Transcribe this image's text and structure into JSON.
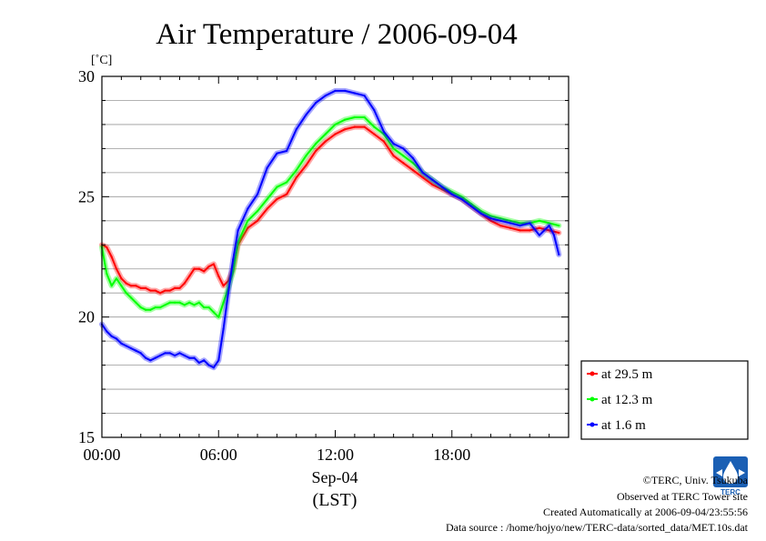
{
  "chart_data": {
    "type": "line",
    "title": "Air Temperature / 2006-09-04",
    "yunit": "[˚C]",
    "ylim": [
      15,
      30
    ],
    "yticks": [
      15,
      20,
      25,
      30
    ],
    "xlim": [
      0,
      24
    ],
    "xticks": [
      {
        "value": 0,
        "label": "00:00"
      },
      {
        "value": 6,
        "label": "06:00"
      },
      {
        "value": 12,
        "label": "12:00"
      },
      {
        "value": 18,
        "label": "18:00"
      }
    ],
    "xlabel_date": "Sep-04",
    "xlabel_unit": "(LST)",
    "grid": true,
    "legend_position": "right",
    "series": [
      {
        "name": "at 29.5 m",
        "color": "#ff0000",
        "x": [
          0,
          0.25,
          0.5,
          0.75,
          1,
          1.25,
          1.5,
          1.75,
          2,
          2.25,
          2.5,
          2.75,
          3,
          3.25,
          3.5,
          3.75,
          4,
          4.25,
          4.5,
          4.75,
          5,
          5.25,
          5.5,
          5.75,
          6,
          6.25,
          6.5,
          6.75,
          7,
          7.5,
          8,
          8.5,
          9,
          9.5,
          10,
          10.5,
          11,
          11.5,
          12,
          12.5,
          13,
          13.5,
          14,
          14.5,
          15,
          15.5,
          16,
          16.5,
          17,
          17.5,
          18,
          18.5,
          19,
          19.5,
          20,
          20.5,
          21,
          21.5,
          22,
          22.5,
          23,
          23.5
        ],
        "y": [
          23.0,
          22.9,
          22.5,
          22.0,
          21.6,
          21.4,
          21.3,
          21.3,
          21.2,
          21.2,
          21.1,
          21.1,
          21.0,
          21.1,
          21.1,
          21.2,
          21.2,
          21.4,
          21.7,
          22.0,
          22.0,
          21.9,
          22.1,
          22.2,
          21.7,
          21.3,
          21.5,
          22.0,
          23.0,
          23.7,
          24.0,
          24.5,
          24.9,
          25.1,
          25.8,
          26.3,
          26.9,
          27.3,
          27.6,
          27.8,
          27.9,
          27.9,
          27.6,
          27.3,
          26.7,
          26.4,
          26.1,
          25.8,
          25.5,
          25.3,
          25.1,
          24.9,
          24.6,
          24.3,
          24.0,
          23.8,
          23.7,
          23.6,
          23.6,
          23.7,
          23.6,
          23.5
        ]
      },
      {
        "name": "at 12.3 m",
        "color": "#00ff00",
        "x": [
          0,
          0.25,
          0.5,
          0.75,
          1,
          1.25,
          1.5,
          1.75,
          2,
          2.25,
          2.5,
          2.75,
          3,
          3.25,
          3.5,
          3.75,
          4,
          4.25,
          4.5,
          4.75,
          5,
          5.25,
          5.5,
          5.75,
          6,
          6.25,
          6.5,
          6.75,
          7,
          7.5,
          8,
          8.5,
          9,
          9.5,
          10,
          10.5,
          11,
          11.5,
          12,
          12.5,
          13,
          13.5,
          14,
          14.5,
          15,
          15.5,
          16,
          16.5,
          17,
          17.5,
          18,
          18.5,
          19,
          19.5,
          20,
          20.5,
          21,
          21.5,
          22,
          22.5,
          23,
          23.5
        ],
        "y": [
          22.9,
          21.8,
          21.3,
          21.6,
          21.3,
          21.0,
          20.8,
          20.6,
          20.4,
          20.3,
          20.3,
          20.4,
          20.4,
          20.5,
          20.6,
          20.6,
          20.6,
          20.5,
          20.6,
          20.5,
          20.6,
          20.4,
          20.4,
          20.2,
          20.0,
          20.6,
          21.2,
          21.9,
          23.1,
          24.0,
          24.4,
          24.9,
          25.4,
          25.6,
          26.1,
          26.7,
          27.2,
          27.6,
          28.0,
          28.2,
          28.3,
          28.3,
          27.9,
          27.6,
          27.0,
          26.7,
          26.4,
          26.0,
          25.7,
          25.4,
          25.2,
          25.0,
          24.7,
          24.4,
          24.2,
          24.1,
          24.0,
          23.9,
          23.9,
          24.0,
          23.9,
          23.8
        ]
      },
      {
        "name": "at 1.6 m",
        "color": "#0000ff",
        "x": [
          0,
          0.25,
          0.5,
          0.75,
          1,
          1.25,
          1.5,
          1.75,
          2,
          2.25,
          2.5,
          2.75,
          3,
          3.25,
          3.5,
          3.75,
          4,
          4.25,
          4.5,
          4.75,
          5,
          5.25,
          5.5,
          5.75,
          6,
          6.25,
          6.5,
          6.75,
          7,
          7.5,
          8,
          8.5,
          9,
          9.5,
          10,
          10.5,
          11,
          11.5,
          12,
          12.5,
          13,
          13.5,
          14,
          14.5,
          15,
          15.5,
          16,
          16.5,
          17,
          17.5,
          18,
          18.5,
          19,
          19.5,
          20,
          20.5,
          21,
          21.5,
          22,
          22.5,
          23,
          23.25,
          23.5
        ],
        "y": [
          19.7,
          19.4,
          19.2,
          19.1,
          18.9,
          18.8,
          18.7,
          18.6,
          18.5,
          18.3,
          18.2,
          18.3,
          18.4,
          18.5,
          18.5,
          18.4,
          18.5,
          18.4,
          18.3,
          18.3,
          18.1,
          18.2,
          18.0,
          17.9,
          18.2,
          19.5,
          21.0,
          22.4,
          23.6,
          24.5,
          25.1,
          26.2,
          26.8,
          26.9,
          27.8,
          28.4,
          28.9,
          29.2,
          29.4,
          29.4,
          29.3,
          29.2,
          28.6,
          27.7,
          27.2,
          27.0,
          26.6,
          26.0,
          25.7,
          25.4,
          25.1,
          24.9,
          24.6,
          24.3,
          24.1,
          24.0,
          23.9,
          23.8,
          23.9,
          23.4,
          23.8,
          23.4,
          22.6
        ]
      }
    ]
  },
  "credits": {
    "copyright": "©TERC, Univ. Tsukuba",
    "site": "Observed at TERC Tower site",
    "created": "Created Automatically at 2006-09-04/23:55:56",
    "source": "Data source : /home/hojyo/new/TERC-data/sorted_data/MET.10s.dat",
    "logo_text": "TERC"
  }
}
